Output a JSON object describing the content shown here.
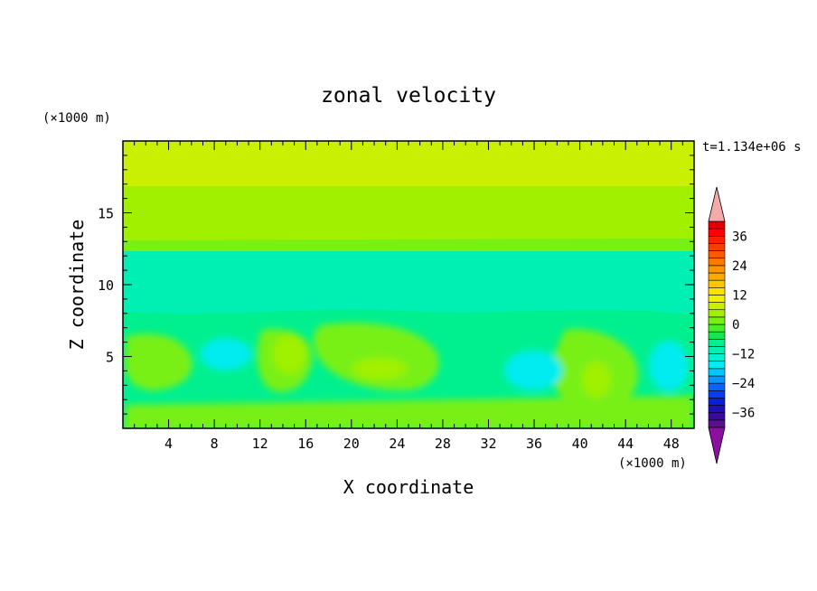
{
  "chart_data": {
    "type": "heatmap",
    "title": "zonal velocity",
    "xlabel": "X coordinate",
    "ylabel": "Z coordinate",
    "x_unit": "(×1000 m)",
    "y_unit": "(×1000 m)",
    "time_label": "t=1.134e+06 s",
    "xlim": [
      0,
      50
    ],
    "ylim": [
      0,
      20
    ],
    "x_ticks": [
      4,
      8,
      12,
      16,
      20,
      24,
      28,
      32,
      36,
      40,
      44,
      48
    ],
    "y_ticks": [
      5,
      10,
      15
    ],
    "colorbar": {
      "levels": [
        -42,
        -39,
        -36,
        -33,
        -30,
        -27,
        -24,
        -21,
        -18,
        -15,
        -12,
        -9,
        -6,
        -3,
        0,
        3,
        6,
        9,
        12,
        15,
        18,
        21,
        24,
        27,
        30,
        33,
        36,
        39,
        42
      ],
      "colors": [
        "#5a1090",
        "#3a0a9a",
        "#1e10b4",
        "#0a1ed2",
        "#0a3cf0",
        "#0a64ff",
        "#0a96ff",
        "#00c8ff",
        "#00ecf0",
        "#00f0d2",
        "#00f0b4",
        "#00f090",
        "#14e650",
        "#46f028",
        "#78f014",
        "#a0f000",
        "#c8f000",
        "#f0f000",
        "#ffe100",
        "#ffc800",
        "#ffaa00",
        "#ff9600",
        "#ff7800",
        "#ff5a00",
        "#ff3c00",
        "#ff1e00",
        "#ff0000",
        "#e10000"
      ],
      "under_color": "#8c10a0",
      "over_color": "#f5aaaa",
      "tick_values": [
        -36,
        -24,
        -12,
        0,
        12,
        24,
        36
      ],
      "tick_labels": [
        "−36",
        "−24",
        "−12",
        "0",
        "12",
        "24",
        "36"
      ]
    }
  }
}
